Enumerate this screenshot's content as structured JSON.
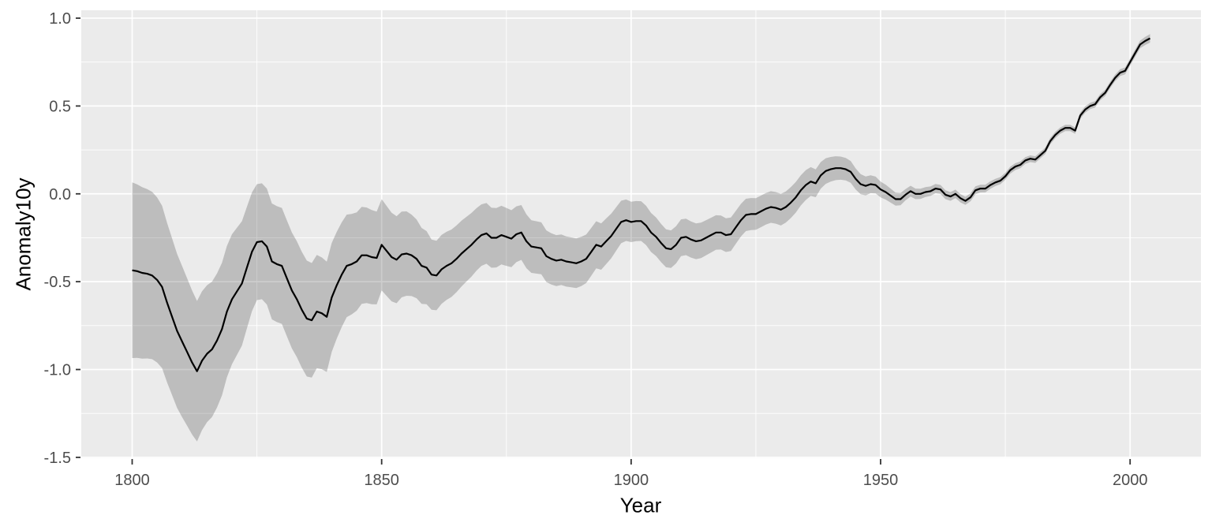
{
  "chart_data": {
    "type": "line",
    "title": "",
    "xlabel": "Year",
    "ylabel": "Anomaly10y",
    "xlim": [
      1789.8,
      2014.2
    ],
    "ylim": [
      -1.505,
      1.045
    ],
    "x_ticks": {
      "values": [
        1800,
        1850,
        1900,
        1950,
        2000
      ],
      "labels": [
        "1800",
        "1850",
        "1900",
        "1950",
        "2000"
      ],
      "minor": [
        1825,
        1875,
        1925,
        1975
      ]
    },
    "y_ticks": {
      "values": [
        1.0,
        0.5,
        0.0,
        -0.5,
        -1.0,
        -1.5
      ],
      "labels": [
        "1.0",
        "0.5",
        "0.0",
        "-0.5",
        "-1.0",
        "-1.5"
      ],
      "minor": [
        0.75,
        0.25,
        -0.25,
        -0.75,
        -1.25
      ]
    },
    "grid": true,
    "legend": "none",
    "colors": {
      "panel_background": "#EBEBEB",
      "grid": "#FFFFFF",
      "line": "#000000",
      "ribbon": "rgba(0,0,0,0.195)",
      "tick_text": "#4D4D4D",
      "tick_mark": "#333333",
      "axis_title": "#000000"
    },
    "series": [
      {
        "name": "Anomaly10y",
        "points": [
          [
            1800,
            -0.435
          ],
          [
            1801,
            -0.44
          ],
          [
            1802,
            -0.45
          ],
          [
            1803,
            -0.455
          ],
          [
            1804,
            -0.465
          ],
          [
            1805,
            -0.49
          ],
          [
            1806,
            -0.53
          ],
          [
            1807,
            -0.62
          ],
          [
            1808,
            -0.7
          ],
          [
            1809,
            -0.78
          ],
          [
            1810,
            -0.84
          ],
          [
            1811,
            -0.9
          ],
          [
            1812,
            -0.96
          ],
          [
            1813,
            -1.01
          ],
          [
            1814,
            -0.95
          ],
          [
            1815,
            -0.91
          ],
          [
            1816,
            -0.885
          ],
          [
            1817,
            -0.835
          ],
          [
            1818,
            -0.77
          ],
          [
            1819,
            -0.67
          ],
          [
            1820,
            -0.6
          ],
          [
            1821,
            -0.555
          ],
          [
            1822,
            -0.51
          ],
          [
            1823,
            -0.42
          ],
          [
            1824,
            -0.33
          ],
          [
            1825,
            -0.275
          ],
          [
            1826,
            -0.27
          ],
          [
            1827,
            -0.3
          ],
          [
            1828,
            -0.385
          ],
          [
            1829,
            -0.4
          ],
          [
            1830,
            -0.41
          ],
          [
            1831,
            -0.48
          ],
          [
            1832,
            -0.55
          ],
          [
            1833,
            -0.6
          ],
          [
            1834,
            -0.66
          ],
          [
            1835,
            -0.71
          ],
          [
            1836,
            -0.72
          ],
          [
            1837,
            -0.67
          ],
          [
            1838,
            -0.68
          ],
          [
            1839,
            -0.7
          ],
          [
            1840,
            -0.59
          ],
          [
            1841,
            -0.52
          ],
          [
            1842,
            -0.46
          ],
          [
            1843,
            -0.41
          ],
          [
            1844,
            -0.4
          ],
          [
            1845,
            -0.385
          ],
          [
            1846,
            -0.35
          ],
          [
            1847,
            -0.35
          ],
          [
            1848,
            -0.36
          ],
          [
            1849,
            -0.365
          ],
          [
            1850,
            -0.29
          ],
          [
            1851,
            -0.325
          ],
          [
            1852,
            -0.36
          ],
          [
            1853,
            -0.375
          ],
          [
            1854,
            -0.345
          ],
          [
            1855,
            -0.34
          ],
          [
            1856,
            -0.35
          ],
          [
            1857,
            -0.37
          ],
          [
            1858,
            -0.41
          ],
          [
            1859,
            -0.42
          ],
          [
            1860,
            -0.46
          ],
          [
            1861,
            -0.465
          ],
          [
            1862,
            -0.43
          ],
          [
            1863,
            -0.41
          ],
          [
            1864,
            -0.395
          ],
          [
            1865,
            -0.37
          ],
          [
            1866,
            -0.34
          ],
          [
            1867,
            -0.315
          ],
          [
            1868,
            -0.29
          ],
          [
            1869,
            -0.26
          ],
          [
            1870,
            -0.235
          ],
          [
            1871,
            -0.225
          ],
          [
            1872,
            -0.25
          ],
          [
            1873,
            -0.25
          ],
          [
            1874,
            -0.235
          ],
          [
            1875,
            -0.245
          ],
          [
            1876,
            -0.255
          ],
          [
            1877,
            -0.23
          ],
          [
            1878,
            -0.22
          ],
          [
            1879,
            -0.27
          ],
          [
            1880,
            -0.3
          ],
          [
            1881,
            -0.305
          ],
          [
            1882,
            -0.31
          ],
          [
            1883,
            -0.355
          ],
          [
            1884,
            -0.37
          ],
          [
            1885,
            -0.38
          ],
          [
            1886,
            -0.375
          ],
          [
            1887,
            -0.385
          ],
          [
            1888,
            -0.39
          ],
          [
            1889,
            -0.395
          ],
          [
            1890,
            -0.385
          ],
          [
            1891,
            -0.37
          ],
          [
            1892,
            -0.33
          ],
          [
            1893,
            -0.29
          ],
          [
            1894,
            -0.3
          ],
          [
            1895,
            -0.27
          ],
          [
            1896,
            -0.24
          ],
          [
            1897,
            -0.2
          ],
          [
            1898,
            -0.16
          ],
          [
            1899,
            -0.15
          ],
          [
            1900,
            -0.16
          ],
          [
            1901,
            -0.155
          ],
          [
            1902,
            -0.155
          ],
          [
            1903,
            -0.18
          ],
          [
            1904,
            -0.22
          ],
          [
            1905,
            -0.245
          ],
          [
            1906,
            -0.28
          ],
          [
            1907,
            -0.31
          ],
          [
            1908,
            -0.315
          ],
          [
            1909,
            -0.29
          ],
          [
            1910,
            -0.25
          ],
          [
            1911,
            -0.245
          ],
          [
            1912,
            -0.26
          ],
          [
            1913,
            -0.27
          ],
          [
            1914,
            -0.265
          ],
          [
            1915,
            -0.25
          ],
          [
            1916,
            -0.235
          ],
          [
            1917,
            -0.22
          ],
          [
            1918,
            -0.22
          ],
          [
            1919,
            -0.235
          ],
          [
            1920,
            -0.23
          ],
          [
            1921,
            -0.19
          ],
          [
            1922,
            -0.15
          ],
          [
            1923,
            -0.12
          ],
          [
            1924,
            -0.115
          ],
          [
            1925,
            -0.115
          ],
          [
            1926,
            -0.1
          ],
          [
            1927,
            -0.085
          ],
          [
            1928,
            -0.075
          ],
          [
            1929,
            -0.08
          ],
          [
            1930,
            -0.09
          ],
          [
            1931,
            -0.075
          ],
          [
            1932,
            -0.05
          ],
          [
            1933,
            -0.02
          ],
          [
            1934,
            0.02
          ],
          [
            1935,
            0.05
          ],
          [
            1936,
            0.07
          ],
          [
            1937,
            0.06
          ],
          [
            1938,
            0.105
          ],
          [
            1939,
            0.13
          ],
          [
            1940,
            0.14
          ],
          [
            1941,
            0.146
          ],
          [
            1942,
            0.146
          ],
          [
            1943,
            0.14
          ],
          [
            1944,
            0.125
          ],
          [
            1945,
            0.085
          ],
          [
            1946,
            0.055
          ],
          [
            1947,
            0.045
          ],
          [
            1948,
            0.055
          ],
          [
            1949,
            0.05
          ],
          [
            1950,
            0.025
          ],
          [
            1951,
            0.01
          ],
          [
            1952,
            -0.01
          ],
          [
            1953,
            -0.03
          ],
          [
            1954,
            -0.03
          ],
          [
            1955,
            -0.005
          ],
          [
            1956,
            0.015
          ],
          [
            1957,
            0.0
          ],
          [
            1958,
            0.0
          ],
          [
            1959,
            0.01
          ],
          [
            1960,
            0.015
          ],
          [
            1961,
            0.03
          ],
          [
            1962,
            0.025
          ],
          [
            1963,
            -0.005
          ],
          [
            1964,
            -0.015
          ],
          [
            1965,
            0.0
          ],
          [
            1966,
            -0.025
          ],
          [
            1967,
            -0.04
          ],
          [
            1968,
            -0.02
          ],
          [
            1969,
            0.02
          ],
          [
            1970,
            0.03
          ],
          [
            1971,
            0.03
          ],
          [
            1972,
            0.05
          ],
          [
            1973,
            0.065
          ],
          [
            1974,
            0.075
          ],
          [
            1975,
            0.1
          ],
          [
            1976,
            0.135
          ],
          [
            1977,
            0.155
          ],
          [
            1978,
            0.165
          ],
          [
            1979,
            0.19
          ],
          [
            1980,
            0.2
          ],
          [
            1981,
            0.195
          ],
          [
            1982,
            0.22
          ],
          [
            1983,
            0.245
          ],
          [
            1984,
            0.3
          ],
          [
            1985,
            0.335
          ],
          [
            1986,
            0.36
          ],
          [
            1987,
            0.375
          ],
          [
            1988,
            0.375
          ],
          [
            1989,
            0.36
          ],
          [
            1990,
            0.445
          ],
          [
            1991,
            0.48
          ],
          [
            1992,
            0.5
          ],
          [
            1993,
            0.51
          ],
          [
            1994,
            0.55
          ],
          [
            1995,
            0.575
          ],
          [
            1996,
            0.62
          ],
          [
            1997,
            0.66
          ],
          [
            1998,
            0.69
          ],
          [
            1999,
            0.7
          ],
          [
            2000,
            0.75
          ],
          [
            2001,
            0.8
          ],
          [
            2002,
            0.85
          ],
          [
            2003,
            0.87
          ],
          [
            2004,
            0.885
          ]
        ]
      }
    ],
    "uncertainty_band_halfwidth": [
      [
        1800,
        0.5
      ],
      [
        1805,
        0.47
      ],
      [
        1810,
        0.43
      ],
      [
        1813,
        0.4
      ],
      [
        1816,
        0.385
      ],
      [
        1820,
        0.37
      ],
      [
        1825,
        0.33
      ],
      [
        1835,
        0.33
      ],
      [
        1840,
        0.31
      ],
      [
        1845,
        0.28
      ],
      [
        1850,
        0.26
      ],
      [
        1855,
        0.24
      ],
      [
        1860,
        0.2
      ],
      [
        1865,
        0.19
      ],
      [
        1870,
        0.175
      ],
      [
        1875,
        0.165
      ],
      [
        1880,
        0.15
      ],
      [
        1885,
        0.145
      ],
      [
        1890,
        0.14
      ],
      [
        1895,
        0.13
      ],
      [
        1900,
        0.115
      ],
      [
        1905,
        0.11
      ],
      [
        1910,
        0.105
      ],
      [
        1915,
        0.1
      ],
      [
        1920,
        0.095
      ],
      [
        1925,
        0.09
      ],
      [
        1930,
        0.09
      ],
      [
        1935,
        0.085
      ],
      [
        1940,
        0.07
      ],
      [
        1945,
        0.06
      ],
      [
        1950,
        0.045
      ],
      [
        1955,
        0.032
      ],
      [
        1960,
        0.027
      ],
      [
        1965,
        0.024
      ],
      [
        1970,
        0.022
      ],
      [
        1975,
        0.02
      ],
      [
        1980,
        0.019
      ],
      [
        1985,
        0.018
      ],
      [
        1990,
        0.018
      ],
      [
        1995,
        0.018
      ],
      [
        2000,
        0.02
      ],
      [
        2004,
        0.024
      ]
    ]
  }
}
